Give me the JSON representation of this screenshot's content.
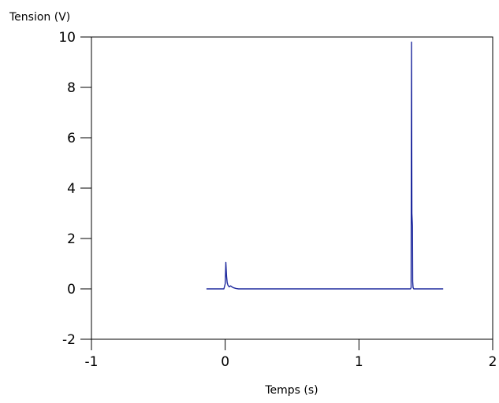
{
  "chart_data": {
    "type": "line",
    "title": "",
    "xlabel": "Temps (s)",
    "ylabel": "Tension (V)",
    "xlim": [
      -1,
      2
    ],
    "ylim": [
      -2,
      10
    ],
    "x_ticks": [
      -1,
      0,
      1,
      2
    ],
    "y_ticks": [
      -2,
      0,
      2,
      4,
      6,
      8,
      10
    ],
    "x_tick_labels": [
      "-1",
      "0",
      "1",
      "2"
    ],
    "y_tick_labels": [
      "-2",
      "0",
      "2",
      "4",
      "6",
      "8",
      "10"
    ],
    "grid": false,
    "legend": "none",
    "series": [
      {
        "color": "#1f2a9e",
        "x": [
          -0.14,
          -0.01,
          0.0,
          0.005,
          0.01,
          0.015,
          0.02,
          0.03,
          0.04,
          0.05,
          0.06,
          0.08,
          0.1,
          0.3,
          0.6,
          1.0,
          1.38,
          1.385,
          1.39,
          1.393,
          1.396,
          1.4,
          1.402,
          1.405,
          1.41,
          1.5,
          1.63
        ],
        "y": [
          0.0,
          0.0,
          0.2,
          1.05,
          0.5,
          0.25,
          0.15,
          0.08,
          0.12,
          0.08,
          0.05,
          0.02,
          0.0,
          0.0,
          0.0,
          0.0,
          0.0,
          0.0,
          0.05,
          9.8,
          3.0,
          2.5,
          0.3,
          0.05,
          0.0,
          0.0,
          0.0
        ]
      }
    ]
  }
}
